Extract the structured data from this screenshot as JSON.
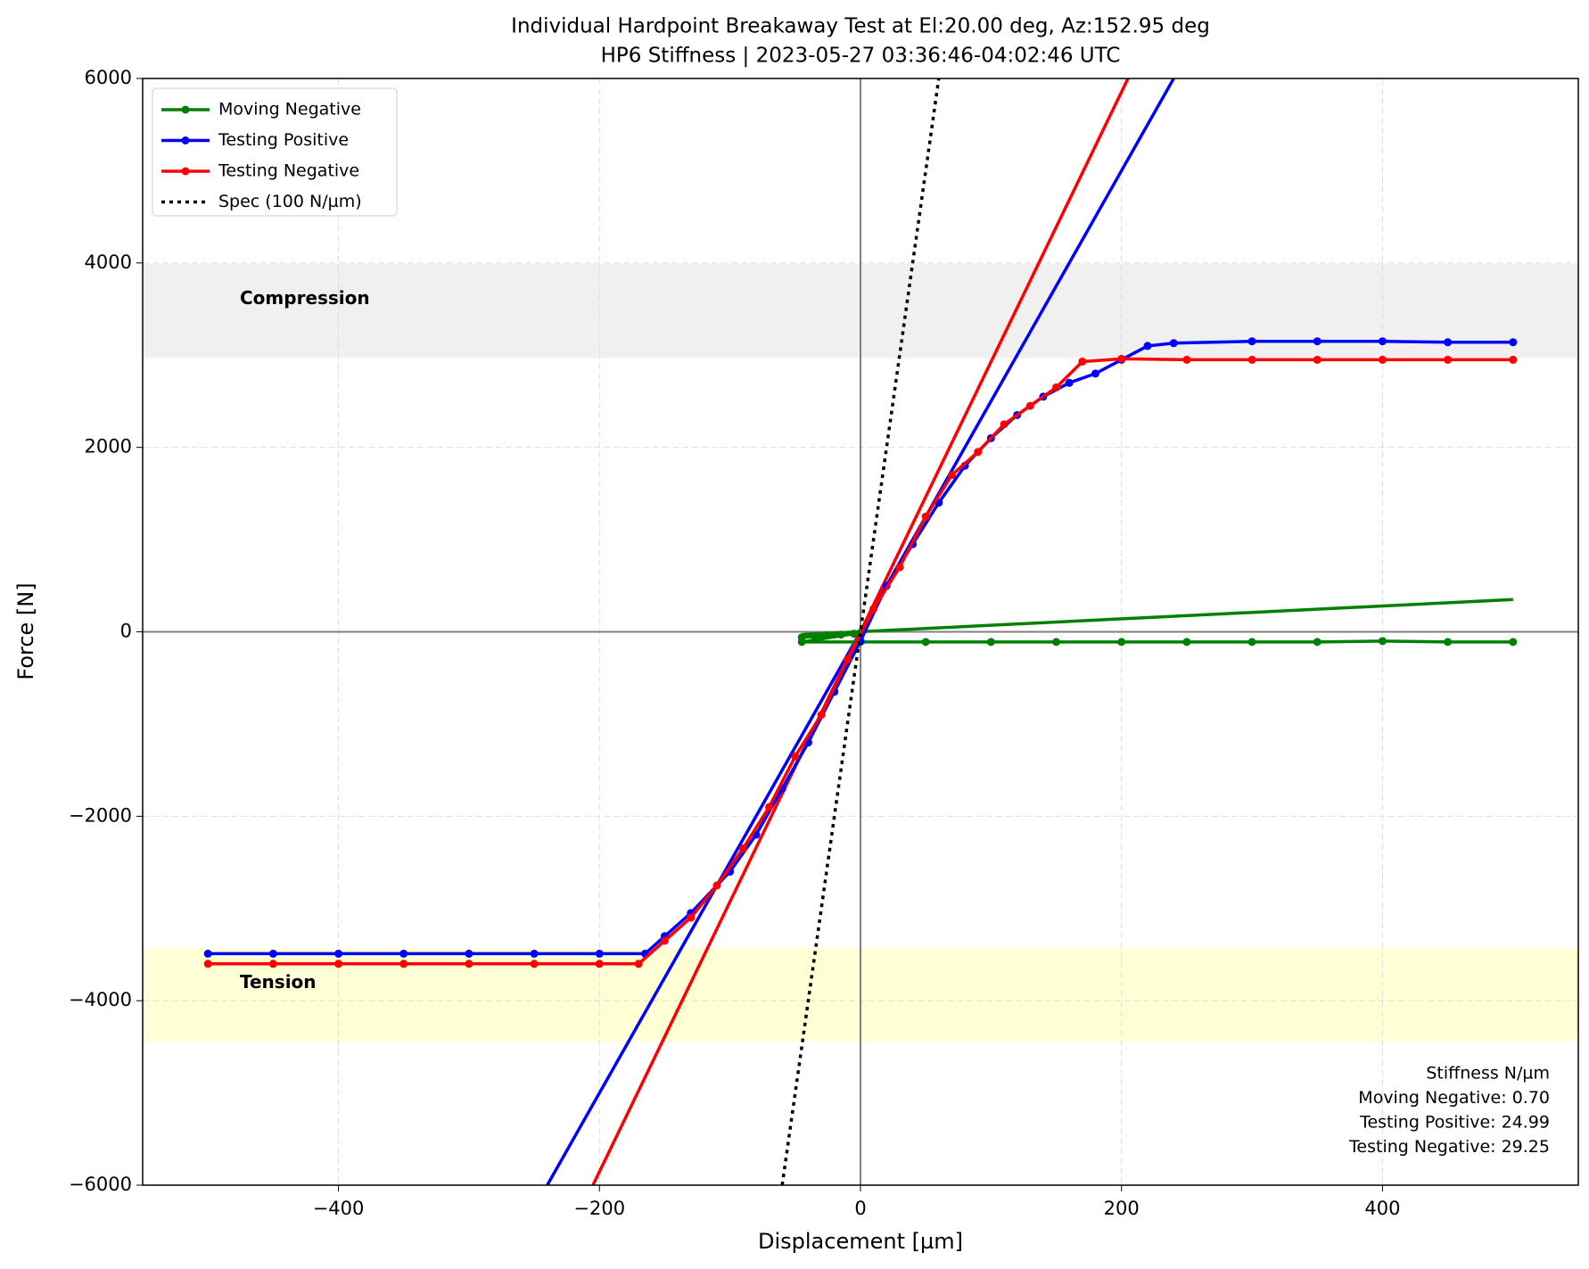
{
  "chart_data": {
    "type": "line",
    "title": "Individual Hardpoint Breakaway Test at El:20.00 deg, Az:152.95 deg",
    "subtitle": "HP6 Stiffness | 2023-05-27 03:36:46-04:02:46 UTC",
    "x_label": "Displacement [µm]",
    "y_label": "Force [N]",
    "xlim": [
      -550,
      550
    ],
    "ylim": [
      -6000,
      6000
    ],
    "xticks": [
      {
        "value": -400,
        "label": "−400"
      },
      {
        "value": -200,
        "label": "−200"
      },
      0,
      200,
      400
    ],
    "yticks": [
      {
        "value": -6000,
        "label": "−6000"
      },
      {
        "value": -4000,
        "label": "−4000"
      },
      {
        "value": -2000,
        "label": "−2000"
      },
      0,
      2000,
      4000,
      6000
    ],
    "grid": true,
    "legend": "upper left",
    "bands": [
      {
        "label": "Compression",
        "from": 2970,
        "to": 3990,
        "color": "#f0f0f0"
      },
      {
        "label": "Tension",
        "from": -4440,
        "to": -3430,
        "color": "#ffffd6"
      }
    ],
    "series": [
      {
        "name": "Moving Negative",
        "color": "#008000",
        "markers": true,
        "x": [
          -45,
          -35,
          -25,
          -15,
          -5,
          0,
          -45,
          0,
          50,
          100,
          150,
          200,
          250,
          300,
          350,
          400,
          450,
          500
        ],
        "values": [
          -60,
          -50,
          -40,
          -30,
          -20,
          -10,
          -110,
          -110,
          -110,
          -110,
          -110,
          -110,
          -110,
          -110,
          -110,
          -100,
          -110,
          -110
        ]
      },
      {
        "name": "Testing Positive",
        "color": "#0000ff",
        "markers": true,
        "x": [
          -500,
          -450,
          -400,
          -350,
          -300,
          -250,
          -200,
          -165,
          -150,
          -130,
          -100,
          -80,
          -60,
          -40,
          -20,
          0,
          20,
          40,
          60,
          80,
          100,
          120,
          140,
          160,
          180,
          200,
          220,
          240,
          300,
          350,
          400,
          450,
          500
        ],
        "values": [
          -3490,
          -3490,
          -3490,
          -3490,
          -3490,
          -3490,
          -3490,
          -3490,
          -3300,
          -3050,
          -2600,
          -2200,
          -1700,
          -1200,
          -650,
          -100,
          500,
          950,
          1400,
          1800,
          2100,
          2350,
          2550,
          2700,
          2800,
          2950,
          3100,
          3130,
          3150,
          3150,
          3150,
          3140,
          3140
        ]
      },
      {
        "name": "Testing Negative",
        "color": "#ff0000",
        "markers": true,
        "x": [
          -500,
          -450,
          -400,
          -350,
          -300,
          -250,
          -200,
          -170,
          -150,
          -130,
          -110,
          -90,
          -70,
          -50,
          -30,
          -10,
          10,
          30,
          50,
          70,
          90,
          110,
          130,
          150,
          170,
          200,
          250,
          300,
          350,
          400,
          450,
          500
        ],
        "values": [
          -3600,
          -3600,
          -3600,
          -3600,
          -3600,
          -3600,
          -3600,
          -3600,
          -3350,
          -3100,
          -2750,
          -2350,
          -1900,
          -1350,
          -900,
          -300,
          250,
          700,
          1250,
          1700,
          1950,
          2250,
          2450,
          2650,
          2930,
          2960,
          2950,
          2950,
          2950,
          2950,
          2950,
          2950
        ]
      },
      {
        "name": "Spec (100 N/µm)",
        "color": "#000000",
        "markers": false,
        "dotted": true,
        "x": [
          -60,
          60
        ],
        "values": [
          -6000,
          6000
        ]
      }
    ],
    "fits": [
      {
        "color": "#008000",
        "x": [
          -45,
          500
        ],
        "values": [
          -30,
          350
        ]
      },
      {
        "color": "#0000ff",
        "x": [
          -240,
          240
        ],
        "values": [
          -6000,
          6000
        ]
      },
      {
        "color": "#ff0000",
        "x": [
          -205,
          205
        ],
        "values": [
          -6000,
          6000
        ]
      }
    ],
    "annotation": [
      "Stiffness N/µm",
      "Moving Negative: 0.70",
      "Testing Positive: 24.99",
      "Testing Negative: 29.25"
    ]
  }
}
